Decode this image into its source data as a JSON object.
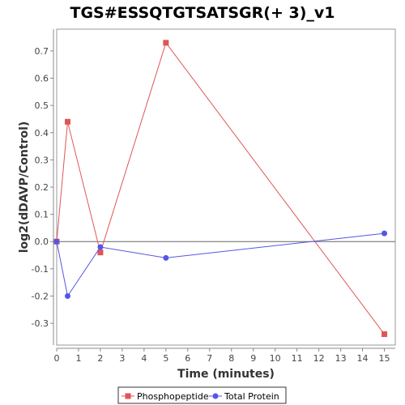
{
  "chart_data": {
    "type": "line",
    "title": "TGS#ESSQTGTSATSGR(+ 3)_v1",
    "xlabel": "Time (minutes)",
    "ylabel": "log2(dDAVP/Control)",
    "xlim": [
      0,
      15.5
    ],
    "ylim": [
      -0.38,
      0.78
    ],
    "xticks": [
      "0",
      "1",
      "2",
      "3",
      "4",
      "5",
      "6",
      "7",
      "8",
      "9",
      "10",
      "11",
      "12",
      "13",
      "14",
      "15"
    ],
    "yticks": [
      "0.7",
      "0.6",
      "0.5",
      "0.4",
      "0.3",
      "0.2",
      "0.1",
      "0.0",
      "-0.1",
      "-0.2",
      "-0.3"
    ],
    "grid": false,
    "legend_position": "bottom",
    "series": [
      {
        "name": "Phosphopeptide",
        "color": "#e05555",
        "marker": "square",
        "x": [
          0,
          0.5,
          2,
          5,
          15
        ],
        "y": [
          0.0,
          0.44,
          -0.04,
          0.73,
          -0.34
        ]
      },
      {
        "name": "Total Protein",
        "color": "#5555e6",
        "marker": "circle",
        "x": [
          0,
          0.5,
          2,
          5,
          15
        ],
        "y": [
          0.0,
          -0.2,
          -0.02,
          -0.06,
          0.03
        ]
      }
    ]
  }
}
